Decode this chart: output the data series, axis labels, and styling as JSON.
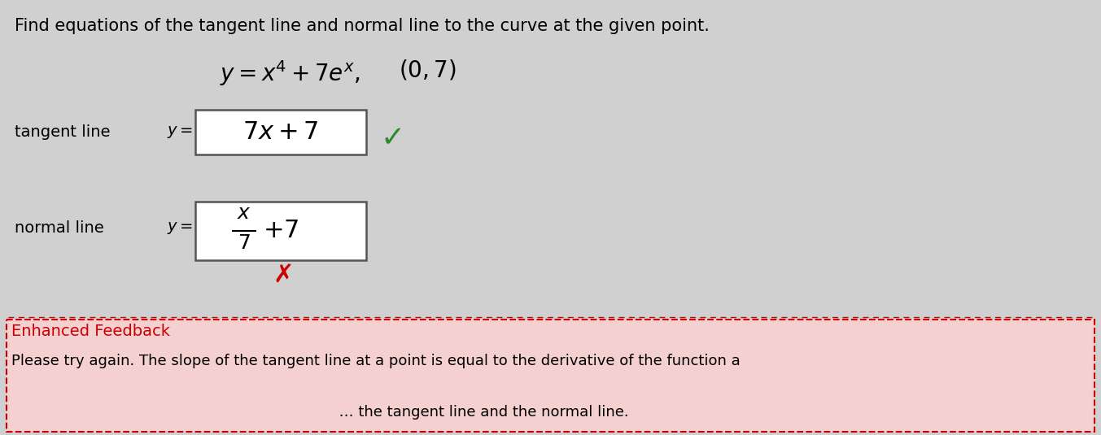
{
  "background_color": "#d0d0d0",
  "feedback_bg_color": "#f5d0d0",
  "feedback_border_color": "#cc0000",
  "main_instruction": "Find equations of the tangent line and normal line to the curve at the given point.",
  "tangent_label": "tangent line",
  "normal_label": "normal line",
  "check_color": "#2d8a2d",
  "cross_color": "#cc0000",
  "feedback_title": "Enhanced Feedback",
  "feedback_title_color": "#cc0000",
  "feedback_text": "Please try again. The slope of the tangent line at a point is equal to the derivative of the function a",
  "feedback_text2": "                                                                      … the tangent line and the normal line.",
  "box_color": "#ffffff",
  "box_border_color": "#555555",
  "text_color": "#000000",
  "font_size_instruction": 15,
  "font_size_equation": 17,
  "font_size_answer": 18,
  "font_size_label": 14,
  "font_size_feedback": 13
}
